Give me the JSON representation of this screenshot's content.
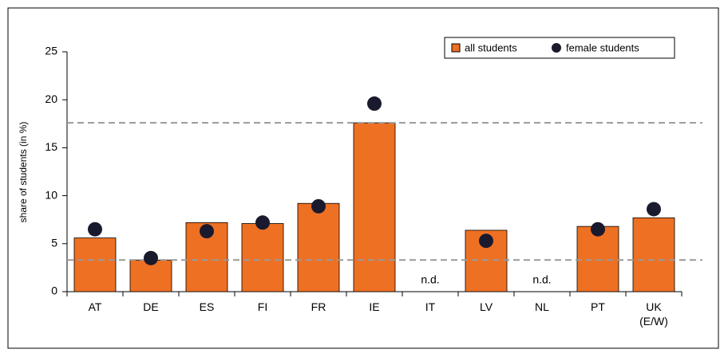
{
  "chart_data": {
    "type": "bar",
    "categories": [
      "AT",
      "DE",
      "ES",
      "FI",
      "FR",
      "IE",
      "IT",
      "LV",
      "NL",
      "PT",
      "UK\n(E/W)"
    ],
    "series": [
      {
        "name": "all students",
        "color": "#ee7023",
        "values": [
          5.6,
          3.3,
          7.2,
          7.1,
          9.2,
          17.6,
          null,
          6.4,
          null,
          6.8,
          7.7
        ],
        "value_labels": [
          null,
          null,
          null,
          null,
          null,
          null,
          "n.d.",
          null,
          "n.d.",
          null,
          null
        ]
      },
      {
        "name": "female students",
        "color": "#1a1a2e",
        "values": [
          6.5,
          3.5,
          6.3,
          7.2,
          8.9,
          19.6,
          null,
          5.3,
          null,
          6.5,
          8.6
        ]
      }
    ],
    "reference_lines": [
      17.6,
      3.3
    ],
    "ylabel": "share of students (in %)",
    "ylim": [
      0,
      25
    ],
    "yticks": [
      0,
      5,
      10,
      15,
      20,
      25
    ],
    "legend": "top-right"
  }
}
